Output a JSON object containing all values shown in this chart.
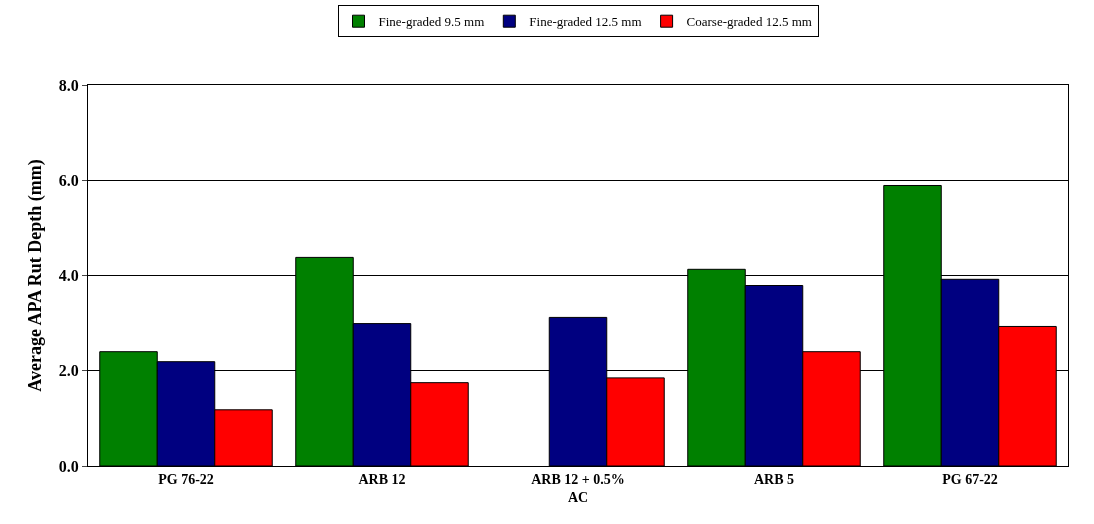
{
  "chart_data": {
    "type": "bar",
    "ylabel": "Average APA Rut Depth (mm)",
    "categories": [
      "PG 76-22",
      "ARB 12",
      "ARB 12 + 0.5% AC",
      "ARB 5",
      "PG 67-22"
    ],
    "series": [
      {
        "name": "Fine-graded 9.5 mm",
        "color": "#008000",
        "values": [
          2.4,
          4.38,
          null,
          4.13,
          5.89
        ]
      },
      {
        "name": "Fine-graded 12.5 mm",
        "color": "#000080",
        "values": [
          2.19,
          2.99,
          3.12,
          3.79,
          3.92
        ]
      },
      {
        "name": "Coarse-graded 12.5 mm",
        "color": "#ff0000",
        "values": [
          1.18,
          1.75,
          1.85,
          2.4,
          2.93
        ]
      }
    ],
    "ylim": [
      0,
      8
    ],
    "yticks": [
      {
        "value": 0,
        "label": "0.0"
      },
      {
        "value": 2,
        "label": "2.0"
      },
      {
        "value": 4,
        "label": "4.0"
      },
      {
        "value": 6,
        "label": "6.0"
      },
      {
        "value": 8,
        "label": "8.0"
      }
    ],
    "grid": "y",
    "legend": "top"
  }
}
